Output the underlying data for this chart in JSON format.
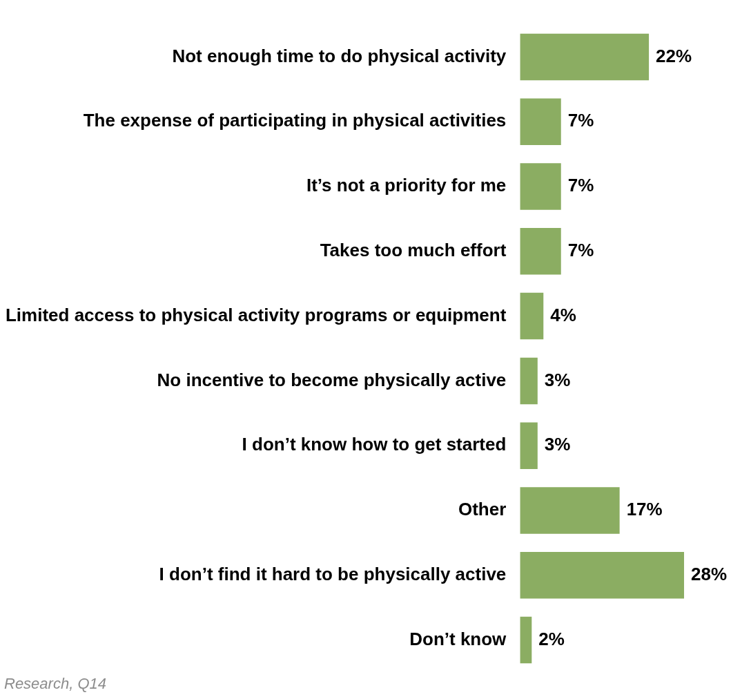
{
  "chart_data": {
    "type": "bar",
    "orientation": "horizontal",
    "categories": [
      "Not enough time to do physical activity",
      "The expense of participating in physical activities",
      "It’s not a priority for me",
      "Takes too much effort",
      "Limited access to physical activity programs or equipment",
      "No incentive to become physically active",
      "I don’t know how to get started",
      "Other",
      "I don’t find it hard to be physically active",
      "Don’t know"
    ],
    "values": [
      22,
      7,
      7,
      7,
      4,
      3,
      3,
      17,
      28,
      2
    ],
    "value_labels": [
      "22%",
      "7%",
      "7%",
      "7%",
      "4%",
      "3%",
      "3%",
      "17%",
      "28%",
      "2%"
    ],
    "color": "#8bad62",
    "grid": false,
    "legend": false,
    "annotations": [
      "Research, Q14"
    ]
  }
}
